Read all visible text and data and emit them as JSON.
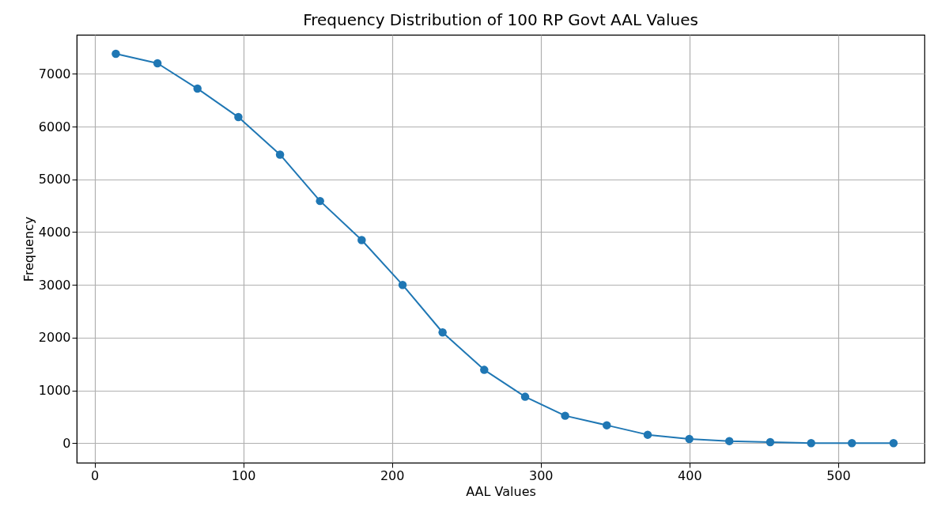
{
  "chart_data": {
    "type": "line",
    "title": "Frequency Distribution of 100 RP Govt AAL Values",
    "xlabel": "AAL Values",
    "ylabel": "Frequency",
    "x": [
      14.3,
      42.3,
      69.2,
      96.7,
      124.7,
      151.6,
      179.6,
      207.1,
      234,
      262,
      289.5,
      316.4,
      344.4,
      371.9,
      399.9,
      426.8,
      454.3,
      481.8,
      509.2,
      537.2
    ],
    "series": [
      {
        "color": "#1f77b4",
        "values": [
          7380,
          7200,
          6720,
          6180,
          5470,
          4590,
          3850,
          3000,
          2100,
          1390,
          880,
          520,
          340,
          160,
          80,
          40,
          20,
          0,
          0,
          0
        ]
      }
    ],
    "xlim": [
      -12,
      558
    ],
    "xticks": [
      0,
      100,
      200,
      300,
      400,
      500
    ],
    "ylim": [
      -370,
      7740
    ],
    "yticks": [
      0,
      1000,
      2000,
      3000,
      4000,
      5000,
      6000,
      7000
    ],
    "grid": true,
    "marker": "circle",
    "line_style": "solid"
  }
}
